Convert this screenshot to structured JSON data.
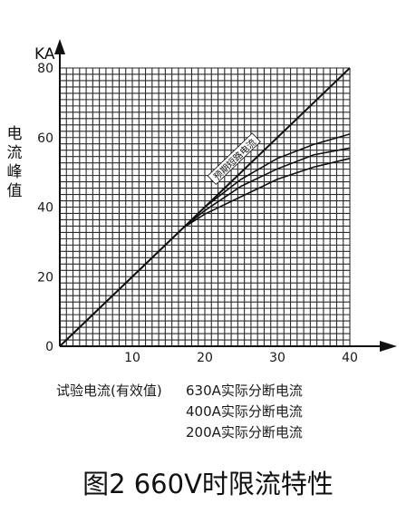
{
  "chart_data": {
    "type": "line",
    "y_unit": "KA",
    "ylabel": "电流峰值",
    "xlabel": "试验电流(有效值)",
    "xlim": [
      0,
      40
    ],
    "ylim": [
      0,
      80
    ],
    "x_ticks": [
      10,
      20,
      30,
      40
    ],
    "y_ticks": [
      0,
      20,
      40,
      60,
      80
    ],
    "grid": true,
    "series": [
      {
        "name": "预期短路电流",
        "x": [
          0,
          40
        ],
        "y": [
          0,
          80
        ]
      },
      {
        "x": [
          0,
          17,
          20,
          25,
          30,
          35,
          40
        ],
        "y": [
          0,
          34,
          40,
          48,
          54,
          58,
          61
        ]
      },
      {
        "x": [
          0,
          17,
          20,
          25,
          30,
          35,
          40
        ],
        "y": [
          0,
          34,
          39,
          46,
          51,
          55,
          57
        ]
      },
      {
        "x": [
          0,
          17,
          20,
          25,
          30,
          35,
          40
        ],
        "y": [
          0,
          34,
          38,
          43,
          48,
          51.5,
          54
        ]
      }
    ],
    "legend": [
      "630A实际分断电流",
      "400A实际分断电流",
      "200A实际分断电流"
    ]
  },
  "caption": "图2 660V时限流特性"
}
